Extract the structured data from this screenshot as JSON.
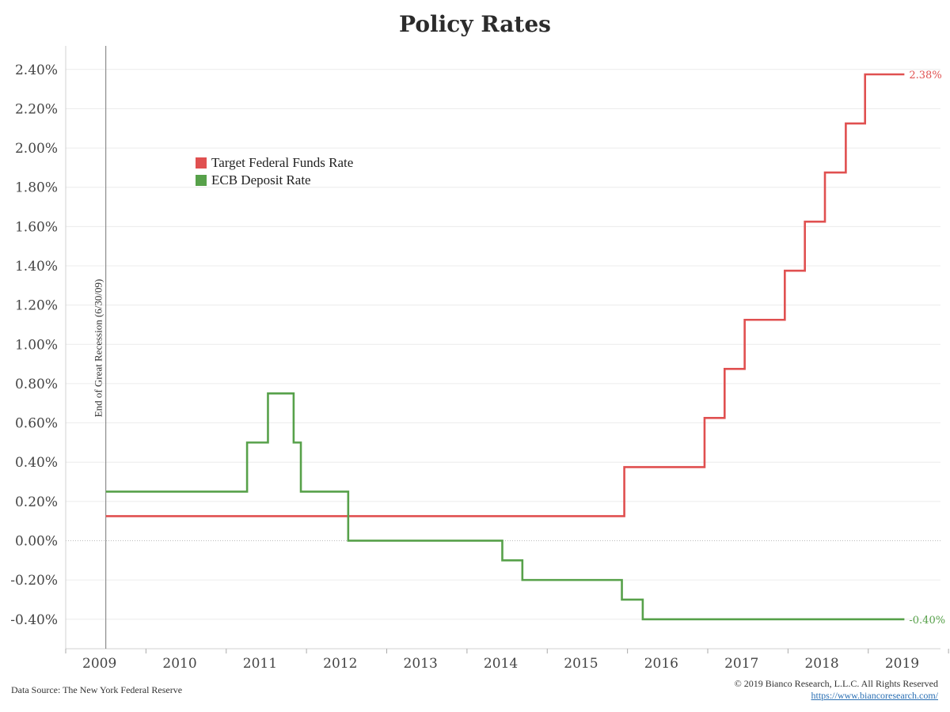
{
  "chart_data": {
    "type": "line",
    "title": "Policy Rates",
    "xlabel": "",
    "ylabel": "",
    "x_ticks": [
      "2009",
      "2010",
      "2011",
      "2012",
      "2013",
      "2014",
      "2015",
      "2016",
      "2017",
      "2018",
      "2019"
    ],
    "y_ticks": [
      "-0.40%",
      "-0.20%",
      "0.00%",
      "0.20%",
      "0.40%",
      "0.60%",
      "0.80%",
      "1.00%",
      "1.20%",
      "1.40%",
      "1.60%",
      "1.80%",
      "2.00%",
      "2.20%",
      "2.40%"
    ],
    "xlim": [
      2009.0,
      2019.9
    ],
    "ylim": [
      -0.55,
      2.52
    ],
    "step": true,
    "grid": "horizontal",
    "legend_position": "upper-left",
    "series": [
      {
        "name": "Target Federal Funds Rate",
        "color": "#e05050",
        "end_label": "2.38%",
        "points": [
          [
            2009.5,
            0.125
          ],
          [
            2015.96,
            0.375
          ],
          [
            2016.96,
            0.625
          ],
          [
            2017.21,
            0.875
          ],
          [
            2017.46,
            1.125
          ],
          [
            2017.96,
            1.375
          ],
          [
            2018.21,
            1.625
          ],
          [
            2018.46,
            1.875
          ],
          [
            2018.72,
            2.125
          ],
          [
            2018.96,
            2.375
          ],
          [
            2019.45,
            2.375
          ]
        ]
      },
      {
        "name": "ECB Deposit Rate",
        "color": "#57a14a",
        "end_label": "-0.40%",
        "points": [
          [
            2009.5,
            0.25
          ],
          [
            2011.26,
            0.5
          ],
          [
            2011.52,
            0.75
          ],
          [
            2011.84,
            0.5
          ],
          [
            2011.93,
            0.25
          ],
          [
            2012.52,
            0.0
          ],
          [
            2014.44,
            -0.1
          ],
          [
            2014.69,
            -0.2
          ],
          [
            2015.93,
            -0.3
          ],
          [
            2016.19,
            -0.4
          ],
          [
            2019.45,
            -0.4
          ]
        ]
      }
    ],
    "annotations": [
      {
        "x": 2009.5,
        "text": "End of Great Recession (6/30/09)"
      }
    ]
  },
  "footer": {
    "source": "Data Source: The New York Federal Reserve",
    "copyright": "© 2019 Bianco Research, L.L.C. All Rights Reserved",
    "url": "https://www.biancoresearch.com/"
  }
}
